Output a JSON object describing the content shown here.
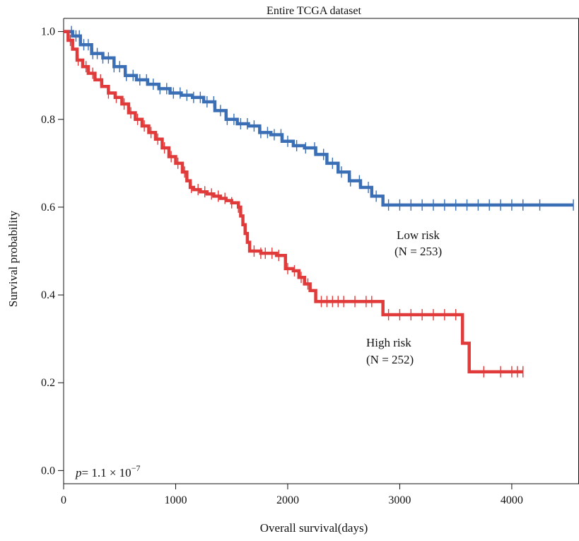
{
  "chart_data": {
    "type": "line",
    "title": "Entire TCGA dataset",
    "xlabel": "Overall survival(days)",
    "ylabel": "Survival probability",
    "xlim": [
      0,
      4600
    ],
    "ylim": [
      -0.03,
      1.03
    ],
    "xticks": [
      0,
      1000,
      2000,
      3000,
      4000
    ],
    "yticks": [
      0.0,
      0.2,
      0.4,
      0.6,
      0.8,
      1.0
    ],
    "ytick_labels": [
      "0.0",
      "0.2",
      "0.4",
      "0.6",
      "0.8",
      "1.0"
    ],
    "annotation": {
      "p_symbol": "p",
      "p_text": "= 1.1 × 10",
      "p_exponent": "−7"
    },
    "series": [
      {
        "name": "Low risk",
        "n_label": "(N = 253)",
        "color": "#3a6fb5",
        "x": [
          0,
          80,
          150,
          250,
          350,
          450,
          550,
          650,
          750,
          850,
          950,
          1050,
          1150,
          1250,
          1350,
          1450,
          1550,
          1650,
          1750,
          1850,
          1950,
          2050,
          2150,
          2250,
          2350,
          2450,
          2550,
          2650,
          2750,
          2850,
          3000,
          3500,
          4000,
          4550
        ],
        "y": [
          1.0,
          0.99,
          0.97,
          0.95,
          0.94,
          0.92,
          0.9,
          0.89,
          0.88,
          0.87,
          0.86,
          0.855,
          0.85,
          0.84,
          0.82,
          0.8,
          0.79,
          0.785,
          0.77,
          0.765,
          0.75,
          0.74,
          0.735,
          0.72,
          0.7,
          0.68,
          0.66,
          0.645,
          0.625,
          0.605,
          0.605,
          0.605,
          0.605,
          0.605
        ],
        "censor_x": [
          70,
          110,
          140,
          180,
          220,
          260,
          300,
          350,
          400,
          450,
          500,
          560,
          620,
          680,
          740,
          800,
          860,
          920,
          980,
          1040,
          1100,
          1160,
          1220,
          1280,
          1340,
          1400,
          1460,
          1520,
          1580,
          1640,
          1700,
          1760,
          1820,
          1880,
          1940,
          2000,
          2080,
          2160,
          2240,
          2320,
          2400,
          2480,
          2560,
          2640,
          2720,
          2790,
          2900,
          3000,
          3100,
          3200,
          3300,
          3400,
          3500,
          3600,
          3700,
          3800,
          3900,
          4000,
          4100,
          4250,
          4550
        ]
      },
      {
        "name": "High risk",
        "n_label": "(N = 252)",
        "color": "#e03a3a",
        "x": [
          0,
          40,
          80,
          120,
          170,
          220,
          280,
          340,
          400,
          460,
          520,
          580,
          640,
          700,
          760,
          820,
          880,
          940,
          1000,
          1060,
          1100,
          1130,
          1160,
          1220,
          1280,
          1340,
          1400,
          1450,
          1500,
          1560,
          1580,
          1600,
          1620,
          1640,
          1660,
          1700,
          1760,
          1820,
          1900,
          1980,
          2050,
          2100,
          2150,
          2200,
          2250,
          2300,
          2800,
          2850,
          3500,
          3560,
          3620,
          3700,
          4100
        ],
        "y": [
          1.0,
          0.98,
          0.96,
          0.935,
          0.92,
          0.905,
          0.89,
          0.875,
          0.86,
          0.85,
          0.835,
          0.815,
          0.8,
          0.785,
          0.77,
          0.755,
          0.735,
          0.715,
          0.7,
          0.68,
          0.66,
          0.645,
          0.64,
          0.635,
          0.63,
          0.625,
          0.62,
          0.615,
          0.61,
          0.6,
          0.58,
          0.56,
          0.54,
          0.52,
          0.5,
          0.5,
          0.495,
          0.495,
          0.49,
          0.46,
          0.455,
          0.44,
          0.425,
          0.41,
          0.385,
          0.385,
          0.385,
          0.355,
          0.355,
          0.29,
          0.225,
          0.225,
          0.225
        ],
        "censor_x": [
          60,
          130,
          200,
          260,
          330,
          400,
          470,
          540,
          600,
          660,
          720,
          780,
          840,
          900,
          960,
          1020,
          1080,
          1140,
          1200,
          1260,
          1320,
          1380,
          1440,
          1500,
          1560,
          1700,
          1760,
          1800,
          1860,
          1920,
          2000,
          2060,
          2120,
          2180,
          2300,
          2350,
          2400,
          2450,
          2500,
          2600,
          2700,
          2750,
          2900,
          3000,
          3100,
          3200,
          3300,
          3400,
          3500,
          3750,
          3900,
          4000,
          4050,
          4100
        ]
      }
    ]
  }
}
